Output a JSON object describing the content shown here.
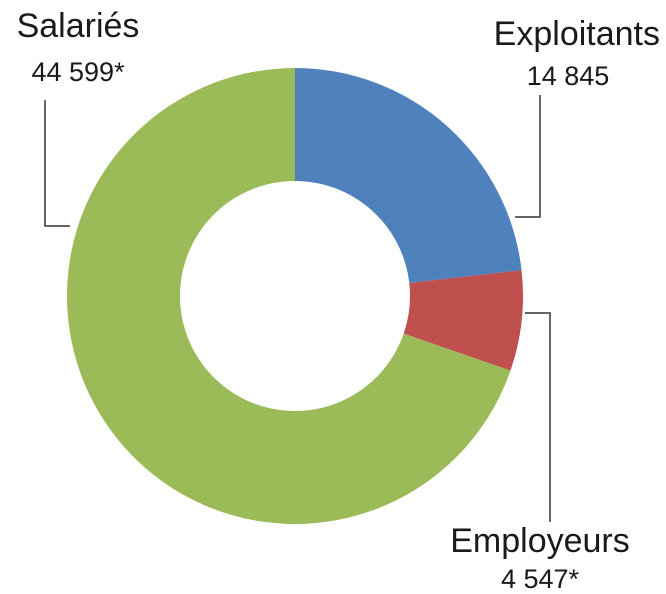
{
  "chart_data": {
    "type": "pie",
    "donut": true,
    "categories": [
      "Exploitants",
      "Employeurs",
      "Salariés"
    ],
    "values": [
      14845,
      4547,
      44599
    ],
    "value_labels": [
      "14 845",
      "4 547*",
      "44 599*"
    ],
    "colors": [
      "#4f81bd",
      "#c0504d",
      "#9bbb59"
    ]
  }
}
